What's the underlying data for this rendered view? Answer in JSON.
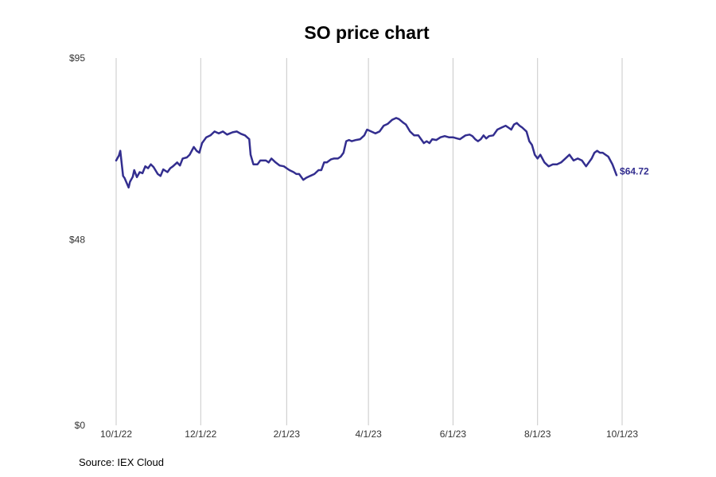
{
  "chart_data": {
    "type": "line",
    "title": "SO price chart",
    "source": "Source: IEX Cloud",
    "xlabel": "",
    "ylabel": "",
    "grid": "vertical",
    "line_color": "#332e8f",
    "grid_color": "#c8c8c8",
    "ylim": [
      0,
      95
    ],
    "y_ticks": [
      {
        "value": 95,
        "label": "$95"
      },
      {
        "value": 48,
        "label": "$48"
      },
      {
        "value": 0,
        "label": "$0"
      }
    ],
    "x_ticks": [
      {
        "value": "2022-10-01",
        "label": "10/1/22"
      },
      {
        "value": "2022-12-01",
        "label": "12/1/22"
      },
      {
        "value": "2023-02-01",
        "label": "2/1/23"
      },
      {
        "value": "2023-04-01",
        "label": "4/1/23"
      },
      {
        "value": "2023-06-01",
        "label": "6/1/23"
      },
      {
        "value": "2023-08-01",
        "label": "8/1/23"
      },
      {
        "value": "2023-10-01",
        "label": "10/1/23"
      }
    ],
    "end_label": "$64.72",
    "series": [
      {
        "x": [
          "2022-10-01",
          "2022-10-03",
          "2022-10-04",
          "2022-10-06",
          "2022-10-07",
          "2022-10-10",
          "2022-10-11",
          "2022-10-13",
          "2022-10-14",
          "2022-10-16",
          "2022-10-18",
          "2022-10-20",
          "2022-10-22",
          "2022-10-24",
          "2022-10-26",
          "2022-10-28",
          "2022-10-31",
          "2022-11-02",
          "2022-11-04",
          "2022-11-07",
          "2022-11-09",
          "2022-11-11",
          "2022-11-14",
          "2022-11-16",
          "2022-11-18",
          "2022-11-21",
          "2022-11-23",
          "2022-11-26",
          "2022-11-28",
          "2022-11-30",
          "2022-12-02",
          "2022-12-05",
          "2022-12-08",
          "2022-12-11",
          "2022-12-14",
          "2022-12-17",
          "2022-12-20",
          "2022-12-22",
          "2022-12-24",
          "2022-12-27",
          "2022-12-30",
          "2023-01-02",
          "2023-01-05",
          "2023-01-06",
          "2023-01-08",
          "2023-01-11",
          "2023-01-13",
          "2023-01-17",
          "2023-01-19",
          "2023-01-21",
          "2023-01-24",
          "2023-01-27",
          "2023-01-30",
          "2023-02-01",
          "2023-02-03",
          "2023-02-06",
          "2023-02-08",
          "2023-02-10",
          "2023-02-13",
          "2023-02-15",
          "2023-02-18",
          "2023-02-21",
          "2023-02-24",
          "2023-02-26",
          "2023-02-28",
          "2023-03-02",
          "2023-03-05",
          "2023-03-07",
          "2023-03-10",
          "2023-03-12",
          "2023-03-14",
          "2023-03-16",
          "2023-03-18",
          "2023-03-20",
          "2023-03-23",
          "2023-03-26",
          "2023-03-29",
          "2023-03-31",
          "2023-04-03",
          "2023-04-06",
          "2023-04-09",
          "2023-04-12",
          "2023-04-15",
          "2023-04-18",
          "2023-04-21",
          "2023-04-23",
          "2023-04-26",
          "2023-04-28",
          "2023-05-01",
          "2023-05-04",
          "2023-05-07",
          "2023-05-09",
          "2023-05-11",
          "2023-05-13",
          "2023-05-15",
          "2023-05-17",
          "2023-05-20",
          "2023-05-23",
          "2023-05-26",
          "2023-05-29",
          "2023-06-01",
          "2023-06-04",
          "2023-06-06",
          "2023-06-08",
          "2023-06-10",
          "2023-06-13",
          "2023-06-15",
          "2023-06-17",
          "2023-06-19",
          "2023-06-21",
          "2023-06-23",
          "2023-06-25",
          "2023-06-27",
          "2023-06-30",
          "2023-07-03",
          "2023-07-06",
          "2023-07-09",
          "2023-07-11",
          "2023-07-13",
          "2023-07-15",
          "2023-07-17",
          "2023-07-19",
          "2023-07-21",
          "2023-07-24",
          "2023-07-26",
          "2023-07-28",
          "2023-07-30",
          "2023-08-01",
          "2023-08-03",
          "2023-08-06",
          "2023-08-09",
          "2023-08-12",
          "2023-08-15",
          "2023-08-18",
          "2023-08-21",
          "2023-08-24",
          "2023-08-27",
          "2023-08-30",
          "2023-09-02",
          "2023-09-05",
          "2023-09-07",
          "2023-09-09",
          "2023-09-11",
          "2023-09-13",
          "2023-09-15",
          "2023-09-17",
          "2023-09-19",
          "2023-09-21",
          "2023-09-24",
          "2023-09-27"
        ],
        "values": [
          68.5,
          69.8,
          71.0,
          64.5,
          64.0,
          61.5,
          63.0,
          64.3,
          66.0,
          64.2,
          65.5,
          65.2,
          67.0,
          66.5,
          67.5,
          66.8,
          65.0,
          64.5,
          66.2,
          65.5,
          66.5,
          67.0,
          68.0,
          67.2,
          69.0,
          69.3,
          70.0,
          72.0,
          71.0,
          70.5,
          73.0,
          74.5,
          75.0,
          76.0,
          75.5,
          76.0,
          75.2,
          75.5,
          75.8,
          76.0,
          75.4,
          75.0,
          74.0,
          70.0,
          67.5,
          67.5,
          68.5,
          68.5,
          68.0,
          69.0,
          68.0,
          67.2,
          67.0,
          66.5,
          66.0,
          65.5,
          65.0,
          65.0,
          63.5,
          64.0,
          64.5,
          65.0,
          66.0,
          66.0,
          68.0,
          68.0,
          68.8,
          69.0,
          69.0,
          69.5,
          70.5,
          73.5,
          73.8,
          73.5,
          73.8,
          74.0,
          75.0,
          76.5,
          76.0,
          75.5,
          76.0,
          77.5,
          78.0,
          79.0,
          79.5,
          79.2,
          78.3,
          77.8,
          76.0,
          75.0,
          75.0,
          74.0,
          73.0,
          73.5,
          73.0,
          74.0,
          73.8,
          74.5,
          74.8,
          74.5,
          74.5,
          74.2,
          74.0,
          74.5,
          75.0,
          75.2,
          74.8,
          74.0,
          73.5,
          74.0,
          75.0,
          74.2,
          74.8,
          75.0,
          76.5,
          77.0,
          77.5,
          77.0,
          76.5,
          77.8,
          78.2,
          77.5,
          77.0,
          76.0,
          73.5,
          72.5,
          70.0,
          69.0,
          70.0,
          68.0,
          67.0,
          67.5,
          67.5,
          68.0,
          69.0,
          70.0,
          68.5,
          69.0,
          68.5,
          67.0,
          68.0,
          69.0,
          70.5,
          71.0,
          70.5,
          70.5,
          70.0,
          69.5,
          67.5,
          64.72
        ]
      }
    ]
  }
}
